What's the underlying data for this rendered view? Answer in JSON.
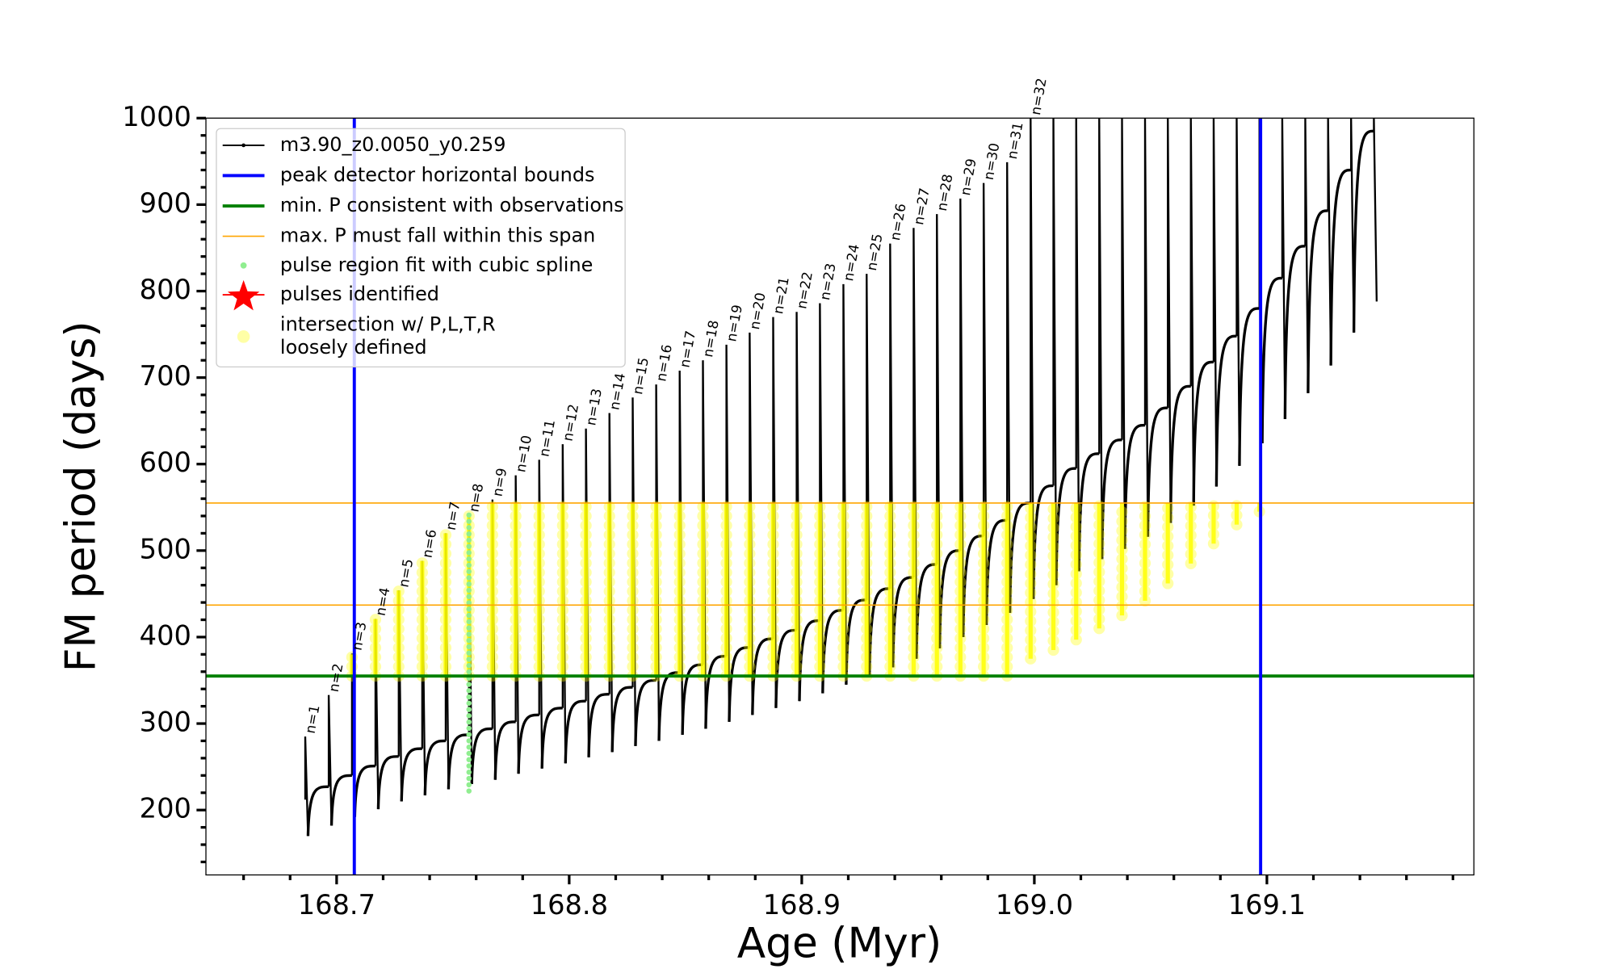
{
  "chart_data": {
    "type": "line",
    "xlabel": "Age (Myr)",
    "ylabel": "FM period (days)",
    "xlim": [
      168.6438,
      169.189
    ],
    "ylim": [
      125,
      1000
    ],
    "xticks": [
      168.7,
      168.8,
      168.9,
      {
        "value": 169,
        "label": "169.0"
      },
      169.1
    ],
    "yticks": [
      200,
      300,
      400,
      500,
      600,
      700,
      800,
      900,
      1000
    ],
    "xminor": [
      168.66,
      168.68,
      168.72,
      168.74,
      168.76,
      168.78,
      168.82,
      168.84,
      168.86,
      168.88,
      168.92,
      168.94,
      168.96,
      168.98,
      169.02,
      169.04,
      169.06,
      169.08,
      169.12,
      169.14,
      169.16,
      169.18
    ],
    "yminor": [
      140,
      160,
      180,
      220,
      240,
      260,
      280,
      320,
      340,
      360,
      380,
      420,
      440,
      460,
      480,
      520,
      540,
      560,
      580,
      620,
      640,
      660,
      680,
      720,
      740,
      760,
      780,
      820,
      840,
      860,
      880,
      920,
      940,
      960,
      980
    ],
    "legend": "upper left",
    "series": [
      {
        "name": "m3.90_z0.0050_y0.259",
        "color": "#000000",
        "x": [
          168.6865,
          168.6966,
          168.7066,
          168.7167,
          168.7267,
          168.7368,
          168.7469,
          168.7569,
          168.767,
          168.777,
          168.7871,
          168.7972,
          168.8072,
          168.8173,
          168.8273,
          168.8374,
          168.8475,
          168.8575,
          168.8676,
          168.8776,
          168.8877,
          168.8978,
          168.9078,
          168.9179,
          168.9279,
          168.938,
          168.9481,
          168.9581,
          168.9682,
          168.9782,
          168.9883,
          168.9984,
          169.0082,
          169.018,
          169.0279,
          169.0377,
          169.0476,
          169.0574,
          169.0673,
          169.0771,
          169.087,
          169.0968,
          169.1066,
          169.1165,
          169.1263,
          169.1362,
          169.146
        ],
        "pre": [
          212,
          227,
          240,
          251,
          262,
          271,
          280,
          287,
          294,
          302,
          310,
          318,
          326,
          334,
          342,
          350,
          359,
          368,
          378,
          388,
          398,
          408,
          419,
          431,
          443,
          456,
          469,
          484,
          500,
          517,
          535,
          555,
          575,
          595,
          612,
          628,
          645,
          665,
          690,
          718,
          748,
          780,
          815,
          852,
          893,
          940,
          985
        ],
        "peaks": [
          285,
          333,
          381,
          421,
          454,
          488,
          520,
          541,
          559,
          587,
          605,
          623,
          641,
          659,
          677,
          692,
          708,
          720,
          738,
          752,
          770,
          776,
          786,
          808,
          820,
          855,
          873,
          889,
          907,
          925,
          949,
          1000,
          1000,
          1000,
          1000,
          1000,
          1000,
          1000,
          1000,
          1000,
          1000,
          1000,
          1000,
          1000,
          1000,
          1000,
          1000
        ],
        "dips": [
          170,
          182,
          192,
          201,
          210,
          217,
          224,
          230,
          235,
          242,
          248,
          254,
          261,
          267,
          274,
          280,
          287,
          294,
          302,
          310,
          318,
          326,
          335,
          345,
          354,
          365,
          375,
          387,
          400,
          414,
          428,
          444,
          460,
          476,
          490,
          502,
          516,
          532,
          552,
          574,
          598,
          624,
          652,
          682,
          714,
          752,
          788
        ],
        "labels": [
          "n=1",
          "n=2",
          "n=3",
          "n=4",
          "n=5",
          "n=6",
          "n=7",
          "n=8",
          "n=9",
          "n=10",
          "n=11",
          "n=12",
          "n=13",
          "n=14",
          "n=15",
          "n=16",
          "n=17",
          "n=18",
          "n=19",
          "n=20",
          "n=21",
          "n=22",
          "n=23",
          "n=24",
          "n=25",
          "n=26",
          "n=27",
          "n=28",
          "n=29",
          "n=30",
          "n=31",
          "n=32",
          null,
          null,
          null,
          null,
          null,
          null,
          null,
          null,
          null,
          null,
          null,
          null,
          null,
          null,
          null
        ]
      },
      {
        "name": "peak detector horizontal bounds",
        "color": "#0000ff",
        "x": [
          168.7076,
          169.0973
        ]
      },
      {
        "name": "min. P consistent with observations",
        "color": "#008000",
        "values": [
          355
        ]
      },
      {
        "name": "max. P must fall within this span",
        "color": "#ffa500",
        "values": [
          437,
          555
        ]
      },
      {
        "name": "pulse region fit with cubic spline",
        "color": "#90ee90",
        "x": [
          168.7569
        ],
        "low": [
          222
        ],
        "high": [
          545
        ]
      },
      {
        "name": "pulses identified",
        "color": "#ff0000"
      },
      {
        "name": "intersection w/ P,L,T,R\nloosely defined",
        "color": "#ffff00",
        "low": [
          null,
          null,
          355,
          355,
          355,
          355,
          355,
          355,
          355,
          355,
          355,
          355,
          355,
          355,
          355,
          355,
          355,
          355,
          355,
          355,
          355,
          355,
          355,
          355,
          355,
          355,
          355,
          355,
          355,
          355,
          355,
          375,
          385,
          397,
          410,
          425,
          442,
          462,
          485,
          508,
          530,
          545,
          null,
          null,
          null,
          null,
          null
        ],
        "high": [
          null,
          null,
          380,
          421,
          454,
          488,
          520,
          541,
          555,
          555,
          555,
          555,
          555,
          555,
          555,
          555,
          555,
          555,
          555,
          555,
          555,
          555,
          555,
          555,
          555,
          555,
          555,
          555,
          555,
          555,
          555,
          555,
          555,
          555,
          555,
          555,
          555,
          555,
          555,
          555,
          555,
          555,
          null,
          null,
          null,
          null,
          null
        ]
      }
    ]
  }
}
